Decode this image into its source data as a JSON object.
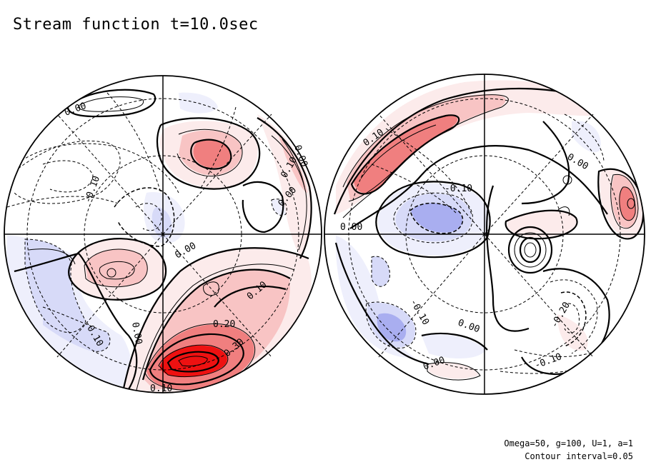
{
  "title": "Stream function t=10.0sec",
  "footer": {
    "params": "Omega=50, g=100, U=1, a=1",
    "interval": "Contour interval=0.05"
  },
  "colors": {
    "positive_strong": "#ee1111",
    "positive_mid": "#f07f7f",
    "positive_weak": "#f8c4c4",
    "positive_faint": "#fcebeb",
    "negative_mid": "#a9aef0",
    "negative_weak": "#d7daf8",
    "negative_faint": "#eeeffc",
    "line": "#000000"
  },
  "hemispheres": [
    {
      "name": "left",
      "labels": [
        {
          "text": "0.00",
          "rot": -20
        },
        {
          "text": "-0.10",
          "rot": -70
        },
        {
          "text": "-0.10",
          "rot": 60
        },
        {
          "text": "0.00",
          "rot": 80
        },
        {
          "text": "0.00",
          "rot": -30
        },
        {
          "text": "0.10",
          "rot": -60
        },
        {
          "text": "0.00",
          "rot": -50
        },
        {
          "text": "0.00",
          "rot": 70
        },
        {
          "text": "0.10",
          "rot": -40
        },
        {
          "text": "0.20",
          "rot": 0
        },
        {
          "text": "0.30",
          "rot": -40
        },
        {
          "text": "0.10",
          "rot": 0
        }
      ]
    },
    {
      "name": "right",
      "labels": [
        {
          "text": "0.10",
          "rot": -35
        },
        {
          "text": "0.00",
          "rot": 30
        },
        {
          "text": "-0.10",
          "rot": 0
        },
        {
          "text": "0.00",
          "rot": 0
        },
        {
          "text": "-0.10",
          "rot": 60
        },
        {
          "text": "0.00",
          "rot": 20
        },
        {
          "text": "-0.20",
          "rot": -60
        },
        {
          "text": "0.00",
          "rot": -20
        },
        {
          "text": "-0.10",
          "rot": -20
        }
      ]
    }
  ]
}
